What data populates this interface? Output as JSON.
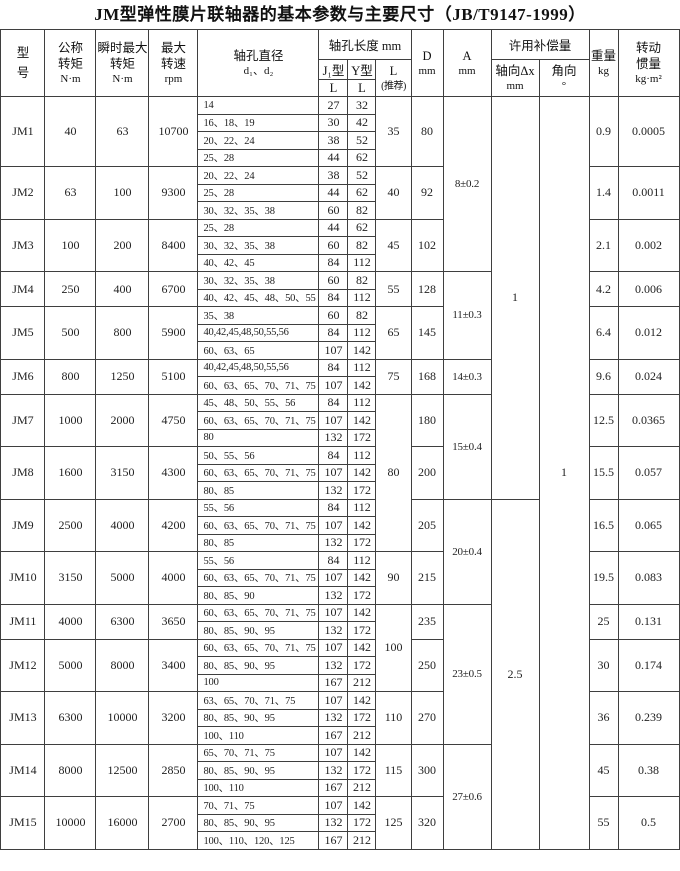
{
  "title": "JM型弹性膜片联轴器的基本参数与主要尺寸（JB/T9147-1999）",
  "header": {
    "model": [
      "型",
      "号"
    ],
    "nominal_torque": [
      "公称",
      "转矩",
      "N·m"
    ],
    "peak_torque": [
      "瞬时最大",
      "转矩",
      "N·m"
    ],
    "max_speed": [
      "最大",
      "转速",
      "rpm"
    ],
    "bore_diameter": [
      "轴孔直径",
      "d₁、d₂"
    ],
    "bore_length": "轴孔长度 mm",
    "j_type": "J₁型",
    "y_type": "Y型",
    "l_label": "L",
    "l_rec": [
      "L",
      "(推荐)"
    ],
    "d": [
      "D",
      "mm"
    ],
    "a": [
      "A",
      "mm"
    ],
    "compensation": "许用补偿量",
    "axial": [
      "轴向Δx",
      "mm"
    ],
    "angular": [
      "角向",
      "°"
    ],
    "weight": [
      "重量",
      "kg"
    ],
    "inertia": [
      "转动",
      "惯量",
      "kg·m²"
    ]
  },
  "body_rows": [
    [
      [
        "JM1",
        4,
        "model"
      ],
      [
        "40",
        4
      ],
      [
        "63",
        4
      ],
      [
        "10700",
        4
      ],
      [
        "14",
        1,
        "bore"
      ],
      [
        "27"
      ],
      [
        "32"
      ],
      [
        "35",
        4
      ],
      [
        "80",
        4
      ],
      [
        "8±0.2",
        10,
        "a"
      ],
      [
        "1",
        23
      ],
      [
        "1",
        43
      ],
      [
        "0.9",
        4
      ],
      [
        "0.0005",
        4
      ]
    ],
    [
      [
        "16、18、19",
        1,
        "bore"
      ],
      [
        "30"
      ],
      [
        "42"
      ]
    ],
    [
      [
        "20、22、24",
        1,
        "bore"
      ],
      [
        "38"
      ],
      [
        "52"
      ]
    ],
    [
      [
        "25、28",
        1,
        "bore"
      ],
      [
        "44"
      ],
      [
        "62"
      ]
    ],
    [
      [
        "JM2",
        3,
        "model"
      ],
      [
        "63",
        3
      ],
      [
        "100",
        3
      ],
      [
        "9300",
        3
      ],
      [
        "20、22、24",
        1,
        "bore"
      ],
      [
        "38"
      ],
      [
        "52"
      ],
      [
        "40",
        3
      ],
      [
        "92",
        3
      ],
      [
        "1.4",
        3
      ],
      [
        "0.0011",
        3
      ]
    ],
    [
      [
        "25、28",
        1,
        "bore"
      ],
      [
        "44"
      ],
      [
        "62"
      ]
    ],
    [
      [
        "30、32、35、38",
        1,
        "bore"
      ],
      [
        "60"
      ],
      [
        "82"
      ]
    ],
    [
      [
        "JM3",
        3,
        "model"
      ],
      [
        "100",
        3
      ],
      [
        "200",
        3
      ],
      [
        "8400",
        3
      ],
      [
        "25、28",
        1,
        "bore"
      ],
      [
        "44"
      ],
      [
        "62"
      ],
      [
        "45",
        3
      ],
      [
        "102",
        3
      ],
      [
        "2.1",
        3
      ],
      [
        "0.002",
        3
      ]
    ],
    [
      [
        "30、32、35、38",
        1,
        "bore"
      ],
      [
        "60"
      ],
      [
        "82"
      ]
    ],
    [
      [
        "40、42、45",
        1,
        "bore"
      ],
      [
        "84"
      ],
      [
        "112"
      ]
    ],
    [
      [
        "JM4",
        2,
        "model"
      ],
      [
        "250",
        2
      ],
      [
        "400",
        2
      ],
      [
        "6700",
        2
      ],
      [
        "30、32、35、38",
        1,
        "bore"
      ],
      [
        "60"
      ],
      [
        "82"
      ],
      [
        "55",
        2
      ],
      [
        "128",
        2
      ],
      [
        "11±0.3",
        5,
        "a"
      ],
      [
        "4.2",
        2
      ],
      [
        "0.006",
        2
      ]
    ],
    [
      [
        "40、42、45、48、50、55",
        1,
        "bore"
      ],
      [
        "84"
      ],
      [
        "112"
      ]
    ],
    [
      [
        "JM5",
        3,
        "model"
      ],
      [
        "500",
        3
      ],
      [
        "800",
        3
      ],
      [
        "5900",
        3
      ],
      [
        "35、38",
        1,
        "bore"
      ],
      [
        "60"
      ],
      [
        "82"
      ],
      [
        "65",
        3
      ],
      [
        "145",
        3
      ],
      [
        "6.4",
        3
      ],
      [
        "0.012",
        3
      ]
    ],
    [
      [
        "40,42,45,48,50,55,56",
        1,
        "bore"
      ],
      [
        "84"
      ],
      [
        "112"
      ]
    ],
    [
      [
        "60、63、65",
        1,
        "bore"
      ],
      [
        "107"
      ],
      [
        "142"
      ]
    ],
    [
      [
        "JM6",
        2,
        "model"
      ],
      [
        "800",
        2
      ],
      [
        "1250",
        2
      ],
      [
        "5100",
        2
      ],
      [
        "40,42,45,48,50,55,56",
        1,
        "bore"
      ],
      [
        "84"
      ],
      [
        "112"
      ],
      [
        "75",
        2
      ],
      [
        "168",
        2
      ],
      [
        "14±0.3",
        2,
        "a"
      ],
      [
        "9.6",
        2
      ],
      [
        "0.024",
        2
      ]
    ],
    [
      [
        "60、63、65、70、71、75",
        1,
        "bore"
      ],
      [
        "107"
      ],
      [
        "142"
      ]
    ],
    [
      [
        "JM7",
        3,
        "model"
      ],
      [
        "1000",
        3
      ],
      [
        "2000",
        3
      ],
      [
        "4750",
        3
      ],
      [
        "45、48、50、55、56",
        1,
        "bore"
      ],
      [
        "84"
      ],
      [
        "112"
      ],
      [
        "80",
        9
      ],
      [
        "180",
        3
      ],
      [
        "15±0.4",
        6,
        "a"
      ],
      [
        "12.5",
        3
      ],
      [
        "0.0365",
        3
      ]
    ],
    [
      [
        "60、63、65、70、71、75",
        1,
        "bore"
      ],
      [
        "107"
      ],
      [
        "142"
      ]
    ],
    [
      [
        "80",
        1,
        "bore"
      ],
      [
        "132"
      ],
      [
        "172"
      ]
    ],
    [
      [
        "JM8",
        3,
        "model"
      ],
      [
        "1600",
        3
      ],
      [
        "3150",
        3
      ],
      [
        "4300",
        3
      ],
      [
        "50、55、56",
        1,
        "bore"
      ],
      [
        "84"
      ],
      [
        "112"
      ],
      [
        "200",
        3
      ],
      [
        "15.5",
        3
      ],
      [
        "0.057",
        3
      ]
    ],
    [
      [
        "60、63、65、70、71、75",
        1,
        "bore"
      ],
      [
        "107"
      ],
      [
        "142"
      ]
    ],
    [
      [
        "80、85",
        1,
        "bore"
      ],
      [
        "132"
      ],
      [
        "172"
      ]
    ],
    [
      [
        "JM9",
        3,
        "model"
      ],
      [
        "2500",
        3
      ],
      [
        "4000",
        3
      ],
      [
        "4200",
        3
      ],
      [
        "55、56",
        1,
        "bore"
      ],
      [
        "84"
      ],
      [
        "112"
      ],
      [
        "205",
        3
      ],
      [
        "20±0.4",
        6,
        "a"
      ],
      [
        "2.5",
        20
      ],
      [
        "16.5",
        3
      ],
      [
        "0.065",
        3
      ]
    ],
    [
      [
        "60、63、65、70、71、75",
        1,
        "bore"
      ],
      [
        "107"
      ],
      [
        "142"
      ]
    ],
    [
      [
        "80、85",
        1,
        "bore"
      ],
      [
        "132"
      ],
      [
        "172"
      ]
    ],
    [
      [
        "JM10",
        3,
        "model"
      ],
      [
        "3150",
        3
      ],
      [
        "5000",
        3
      ],
      [
        "4000",
        3
      ],
      [
        "55、56",
        1,
        "bore"
      ],
      [
        "84"
      ],
      [
        "112"
      ],
      [
        "90",
        3
      ],
      [
        "215",
        3
      ],
      [
        "19.5",
        3
      ],
      [
        "0.083",
        3
      ]
    ],
    [
      [
        "60、63、65、70、71、75",
        1,
        "bore"
      ],
      [
        "107"
      ],
      [
        "142"
      ]
    ],
    [
      [
        "80、85、90",
        1,
        "bore"
      ],
      [
        "132"
      ],
      [
        "172"
      ]
    ],
    [
      [
        "JM11",
        2,
        "model"
      ],
      [
        "4000",
        2
      ],
      [
        "6300",
        2
      ],
      [
        "3650",
        2
      ],
      [
        "60、63、65、70、71、75",
        1,
        "bore"
      ],
      [
        "107"
      ],
      [
        "142"
      ],
      [
        "100",
        5
      ],
      [
        "235",
        2
      ],
      [
        "23±0.5",
        8,
        "a"
      ],
      [
        "25",
        2
      ],
      [
        "0.131",
        2
      ]
    ],
    [
      [
        "80、85、90、95",
        1,
        "bore"
      ],
      [
        "132"
      ],
      [
        "172"
      ]
    ],
    [
      [
        "JM12",
        3,
        "model"
      ],
      [
        "5000",
        3
      ],
      [
        "8000",
        3
      ],
      [
        "3400",
        3
      ],
      [
        "60、63、65、70、71、75",
        1,
        "bore"
      ],
      [
        "107"
      ],
      [
        "142"
      ],
      [
        "250",
        3
      ],
      [
        "30",
        3
      ],
      [
        "0.174",
        3
      ]
    ],
    [
      [
        "80、85、90、95",
        1,
        "bore"
      ],
      [
        "132"
      ],
      [
        "172"
      ]
    ],
    [
      [
        "100",
        1,
        "bore"
      ],
      [
        "167"
      ],
      [
        "212"
      ]
    ],
    [
      [
        "JM13",
        3,
        "model"
      ],
      [
        "6300",
        3
      ],
      [
        "10000",
        3
      ],
      [
        "3200",
        3
      ],
      [
        "63、65、70、71、75",
        1,
        "bore"
      ],
      [
        "107"
      ],
      [
        "142"
      ],
      [
        "110",
        3
      ],
      [
        "270",
        3
      ],
      [
        "36",
        3
      ],
      [
        "0.239",
        3
      ]
    ],
    [
      [
        "80、85、90、95",
        1,
        "bore"
      ],
      [
        "132"
      ],
      [
        "172"
      ]
    ],
    [
      [
        "100、110",
        1,
        "bore"
      ],
      [
        "167"
      ],
      [
        "212"
      ]
    ],
    [
      [
        "JM14",
        3,
        "model"
      ],
      [
        "8000",
        3
      ],
      [
        "12500",
        3
      ],
      [
        "2850",
        3
      ],
      [
        "65、70、71、75",
        1,
        "bore"
      ],
      [
        "107"
      ],
      [
        "142"
      ],
      [
        "115",
        3
      ],
      [
        "300",
        3
      ],
      [
        "27±0.6",
        6,
        "a"
      ],
      [
        "45",
        3
      ],
      [
        "0.38",
        3
      ]
    ],
    [
      [
        "80、85、90、95",
        1,
        "bore"
      ],
      [
        "132"
      ],
      [
        "172"
      ]
    ],
    [
      [
        "100、110",
        1,
        "bore"
      ],
      [
        "167"
      ],
      [
        "212"
      ]
    ],
    [
      [
        "JM15",
        3,
        "model"
      ],
      [
        "10000",
        3
      ],
      [
        "16000",
        3
      ],
      [
        "2700",
        3
      ],
      [
        "70、71、75",
        1,
        "bore"
      ],
      [
        "107"
      ],
      [
        "142"
      ],
      [
        "125",
        3
      ],
      [
        "320",
        3
      ],
      [
        "55",
        3
      ],
      [
        "0.5",
        3
      ]
    ],
    [
      [
        "80、85、90、95",
        1,
        "bore"
      ],
      [
        "132"
      ],
      [
        "172"
      ]
    ],
    [
      [
        "100、110、120、125",
        1,
        "bore"
      ],
      [
        "167"
      ],
      [
        "212"
      ]
    ]
  ]
}
